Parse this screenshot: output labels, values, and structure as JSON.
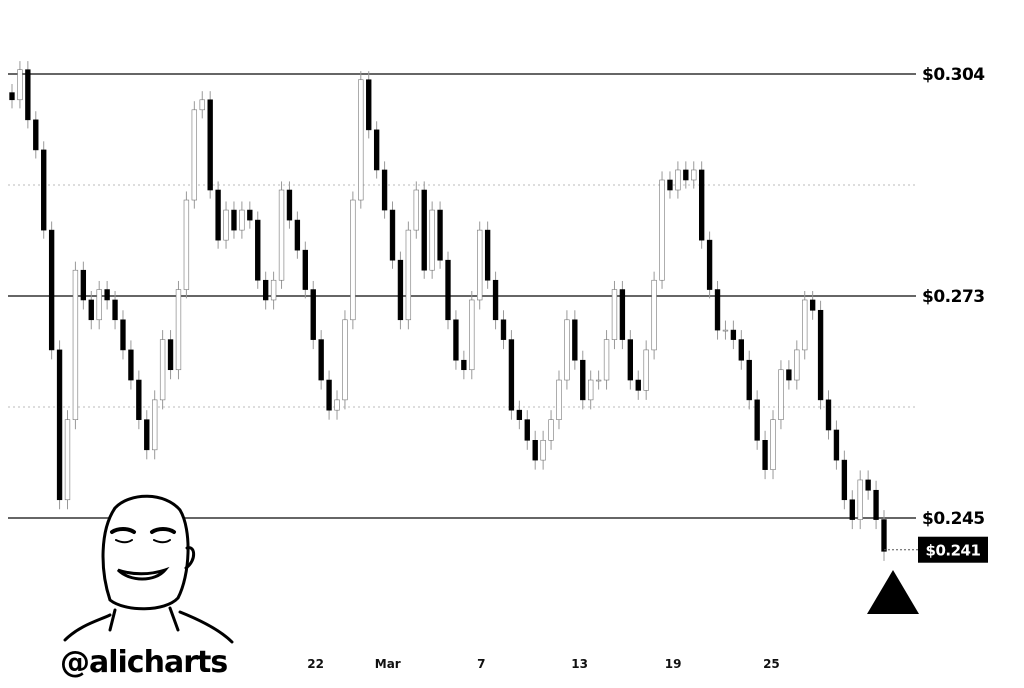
{
  "chart_data": {
    "type": "candlestick",
    "title": "",
    "xlabel": "",
    "ylabel": "",
    "ylim": [
      0.236,
      0.3085
    ],
    "grid": false,
    "colors": {
      "candle": "#000000",
      "wick": "#999999",
      "levels": "#333333",
      "dotted": "#bbbbbb"
    },
    "close": [
      0.3004,
      0.3046,
      0.2976,
      0.2934,
      0.2822,
      0.2662,
      0.2473,
      0.2574,
      0.2766,
      0.2725,
      0.27,
      0.2739,
      0.2725,
      0.27,
      0.2662,
      0.2624,
      0.2574,
      0.2536,
      0.2599,
      0.2675,
      0.2637,
      0.2739,
      0.2864,
      0.299,
      0.3004,
      0.2878,
      0.2808,
      0.285,
      0.2822,
      0.285,
      0.2836,
      0.2752,
      0.2725,
      0.2752,
      0.2878,
      0.2836,
      0.2794,
      0.2739,
      0.2675,
      0.2624,
      0.2586,
      0.2599,
      0.27,
      0.2864,
      0.3032,
      0.2962,
      0.2906,
      0.285,
      0.278,
      0.27,
      0.2822,
      0.2878,
      0.2766,
      0.285,
      0.278,
      0.27,
      0.2649,
      0.2637,
      0.2725,
      0.2822,
      0.2752,
      0.27,
      0.2675,
      0.2586,
      0.2574,
      0.2548,
      0.2523,
      0.2548,
      0.2574,
      0.2624,
      0.27,
      0.2649,
      0.2599,
      0.2624,
      0.2624,
      0.2675,
      0.2739,
      0.2675,
      0.2624,
      0.2611,
      0.2662,
      0.2752,
      0.2892,
      0.2878,
      0.2906,
      0.2892,
      0.2906,
      0.2808,
      0.2739,
      0.2687,
      0.2687,
      0.2675,
      0.2649,
      0.2599,
      0.2548,
      0.2511,
      0.2574,
      0.2637,
      0.2624,
      0.2662,
      0.2725,
      0.2712,
      0.2599,
      0.2561,
      0.2523,
      0.2473,
      0.2448,
      0.2498,
      0.2485,
      0.2448,
      0.2408
    ],
    "levels": [
      {
        "value": 0.304,
        "label": "$0.304"
      },
      {
        "value": 0.273,
        "label": "$0.273"
      },
      {
        "value": 0.245,
        "label": "$0.245"
      }
    ],
    "dotted_levels": [
      0.2885,
      0.259
    ],
    "current_price": {
      "value": 0.241,
      "label": "$0.241"
    },
    "x_ticks": [
      {
        "index": 38.3,
        "label": "22"
      },
      {
        "index": 47.4,
        "label": "Mar"
      },
      {
        "index": 59.2,
        "label": "7"
      },
      {
        "index": 71.6,
        "label": "13"
      },
      {
        "index": 83.4,
        "label": "19"
      },
      {
        "index": 95.8,
        "label": "25"
      }
    ],
    "annotation": {
      "icon": "up-triangle-icon"
    }
  },
  "branding": {
    "handle": "@alicharts",
    "logo": "cartoon-face-avatar"
  }
}
